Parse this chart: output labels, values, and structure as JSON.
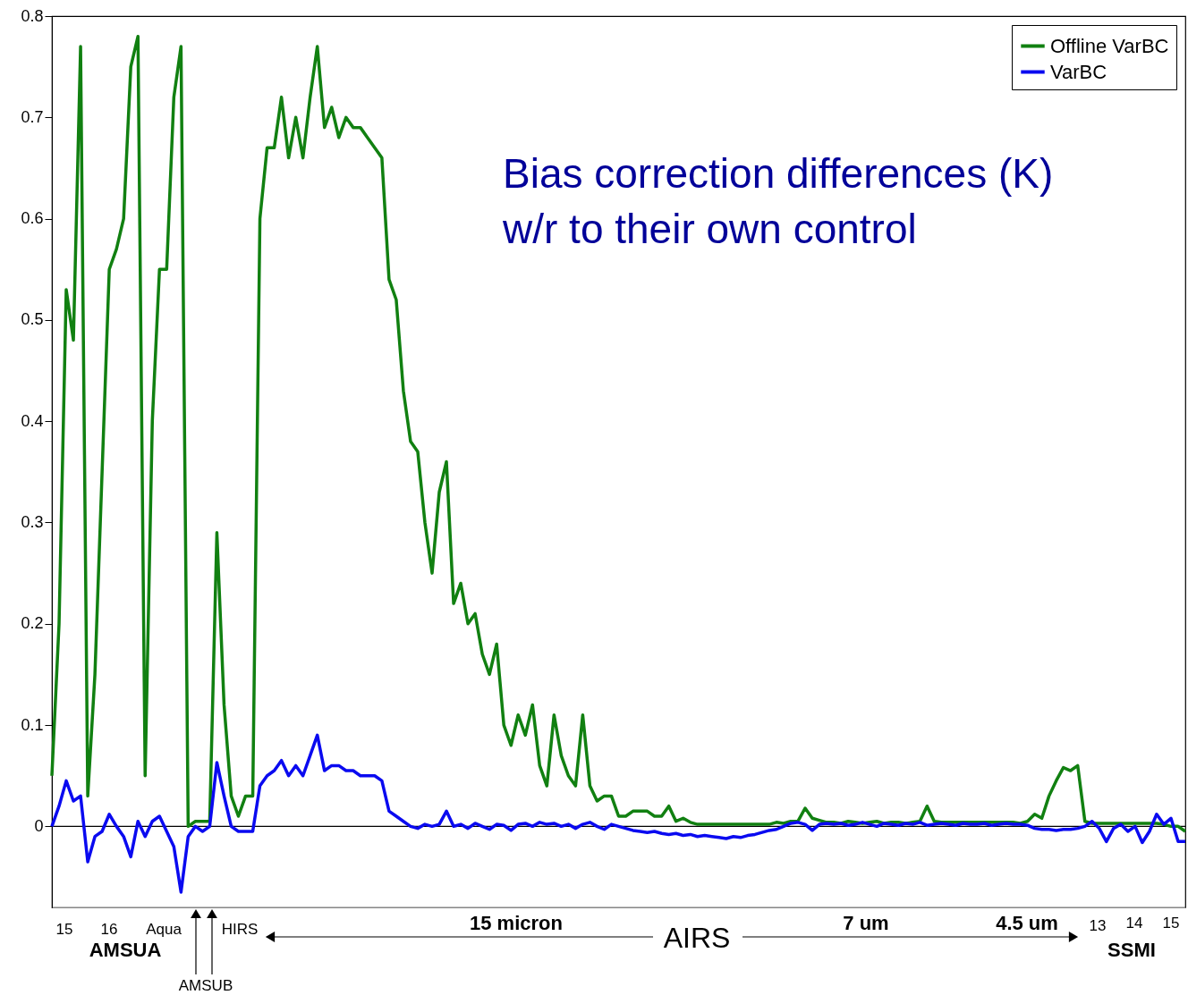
{
  "chart_data": {
    "type": "line",
    "categories": [
      null,
      null,
      null,
      null,
      null,
      null,
      null,
      null,
      null,
      null,
      null,
      null,
      null,
      null,
      null,
      null,
      null,
      null,
      null,
      null,
      null,
      null,
      null,
      null,
      null,
      null,
      null,
      null,
      null,
      null,
      null,
      null,
      null,
      null,
      null,
      null,
      null,
      null,
      null,
      null,
      null,
      null,
      null,
      null,
      null,
      null,
      null,
      null,
      null,
      null,
      null,
      null,
      null,
      null,
      null,
      null,
      null,
      null,
      null,
      null,
      null,
      null,
      null,
      null,
      null,
      null,
      null,
      null,
      null,
      null,
      null,
      null,
      null,
      null,
      null,
      null,
      null,
      null,
      null,
      null,
      null,
      null,
      null,
      null,
      null,
      null,
      null,
      null,
      null,
      null,
      null,
      null,
      null,
      null,
      null,
      null,
      null,
      null,
      null,
      null,
      null,
      null,
      null,
      null,
      null,
      null,
      null,
      null,
      null,
      null,
      null,
      null,
      null,
      null,
      null,
      null,
      null,
      null,
      null,
      null,
      null,
      null,
      null,
      null,
      null,
      null,
      null,
      null,
      null,
      null,
      null,
      null,
      null,
      null,
      null,
      null,
      null,
      null,
      null,
      null,
      null,
      null,
      null,
      null,
      null,
      null,
      null,
      null,
      null,
      null,
      null,
      null,
      null,
      null,
      null,
      null,
      null,
      null,
      null
    ],
    "series": [
      {
        "name": "Offline VarBC",
        "color": "#118011",
        "values": [
          0.05,
          0.2,
          0.53,
          0.48,
          0.77,
          0.03,
          0.15,
          0.35,
          0.55,
          0.57,
          0.6,
          0.75,
          0.78,
          0.05,
          0.4,
          0.55,
          0.55,
          0.72,
          0.77,
          0.0,
          0.005,
          0.005,
          0.005,
          0.29,
          0.12,
          0.03,
          0.01,
          0.03,
          0.03,
          0.6,
          0.67,
          0.67,
          0.72,
          0.66,
          0.7,
          0.66,
          0.72,
          0.77,
          0.69,
          0.71,
          0.68,
          0.7,
          0.69,
          0.69,
          0.68,
          0.67,
          0.66,
          0.54,
          0.52,
          0.43,
          0.38,
          0.37,
          0.3,
          0.25,
          0.33,
          0.36,
          0.22,
          0.24,
          0.2,
          0.21,
          0.17,
          0.15,
          0.18,
          0.1,
          0.08,
          0.11,
          0.09,
          0.12,
          0.06,
          0.04,
          0.11,
          0.07,
          0.05,
          0.04,
          0.11,
          0.04,
          0.025,
          0.03,
          0.03,
          0.01,
          0.01,
          0.015,
          0.015,
          0.015,
          0.01,
          0.01,
          0.02,
          0.005,
          0.008,
          0.004,
          0.002,
          0.002,
          0.002,
          0.002,
          0.002,
          0.002,
          0.002,
          0.002,
          0.002,
          0.002,
          0.002,
          0.004,
          0.003,
          0.005,
          0.005,
          0.018,
          0.008,
          0.006,
          0.004,
          0.004,
          0.003,
          0.005,
          0.004,
          0.003,
          0.004,
          0.005,
          0.003,
          0.004,
          0.004,
          0.003,
          0.004,
          0.005,
          0.02,
          0.005,
          0.004,
          0.004,
          0.004,
          0.004,
          0.004,
          0.004,
          0.004,
          0.004,
          0.004,
          0.004,
          0.004,
          0.003,
          0.005,
          0.012,
          0.008,
          0.03,
          0.045,
          0.058,
          0.055,
          0.06,
          0.005,
          0.003,
          0.003,
          0.003,
          0.003,
          0.003,
          0.003,
          0.003,
          0.003,
          0.003,
          0.003,
          0.002,
          0.0,
          0.0,
          -0.005
        ]
      },
      {
        "name": "VarBC",
        "color": "#0a0af0",
        "values": [
          0.0,
          0.02,
          0.045,
          0.025,
          0.03,
          -0.035,
          -0.01,
          -0.005,
          0.012,
          0.0,
          -0.01,
          -0.03,
          0.005,
          -0.01,
          0.005,
          0.01,
          -0.005,
          -0.02,
          -0.065,
          -0.01,
          0.0,
          -0.005,
          0.0,
          0.063,
          0.03,
          0.0,
          -0.005,
          -0.005,
          -0.005,
          0.04,
          0.05,
          0.055,
          0.065,
          0.05,
          0.06,
          0.05,
          0.07,
          0.09,
          0.055,
          0.06,
          0.06,
          0.055,
          0.055,
          0.05,
          0.05,
          0.05,
          0.045,
          0.015,
          0.01,
          0.005,
          0.0,
          -0.002,
          0.002,
          0.0,
          0.002,
          0.015,
          0.0,
          0.002,
          -0.002,
          0.003,
          0.0,
          -0.003,
          0.002,
          0.001,
          -0.004,
          0.002,
          0.003,
          0.0,
          0.004,
          0.002,
          0.003,
          0.0,
          0.002,
          -0.002,
          0.002,
          0.004,
          0.0,
          -0.003,
          0.002,
          0.0,
          -0.002,
          -0.004,
          -0.005,
          -0.006,
          -0.005,
          -0.007,
          -0.008,
          -0.007,
          -0.009,
          -0.008,
          -0.01,
          -0.009,
          -0.01,
          -0.011,
          -0.012,
          -0.01,
          -0.011,
          -0.009,
          -0.008,
          -0.006,
          -0.004,
          -0.003,
          0.0,
          0.003,
          0.004,
          0.002,
          -0.004,
          0.002,
          0.003,
          0.002,
          0.003,
          0.001,
          0.002,
          0.004,
          0.002,
          0.0,
          0.003,
          0.002,
          0.001,
          0.003,
          0.002,
          0.004,
          0.001,
          0.002,
          0.003,
          0.002,
          0.001,
          0.003,
          0.002,
          0.002,
          0.003,
          0.001,
          0.002,
          0.003,
          0.002,
          0.002,
          0.001,
          -0.002,
          -0.003,
          -0.003,
          -0.004,
          -0.003,
          -0.003,
          -0.002,
          0.0,
          0.005,
          -0.002,
          -0.015,
          -0.002,
          0.002,
          -0.005,
          0.0,
          -0.016,
          -0.005,
          0.012,
          0.002,
          0.008,
          -0.015,
          -0.015
        ]
      }
    ],
    "ylim": [
      -0.08,
      0.8
    ],
    "yticks": [
      0,
      0.1,
      0.2,
      0.3,
      0.4,
      0.5,
      0.6,
      0.7,
      0.8
    ],
    "ref_lines": [
      {
        "axis": "y",
        "value": 0,
        "color": "#000000"
      }
    ],
    "grid": false,
    "legend": "top right",
    "marker": "none",
    "line_style": "solid",
    "annotations": [
      "Bias correction differences (K)\nw/r to their own control",
      "15",
      "16",
      "Aqua",
      "AMSUA",
      "AMSUB",
      "HIRS",
      "15 micron",
      "AIRS",
      "7 um",
      "4.5 um",
      "13",
      "14",
      "15",
      "SSMI"
    ]
  }
}
